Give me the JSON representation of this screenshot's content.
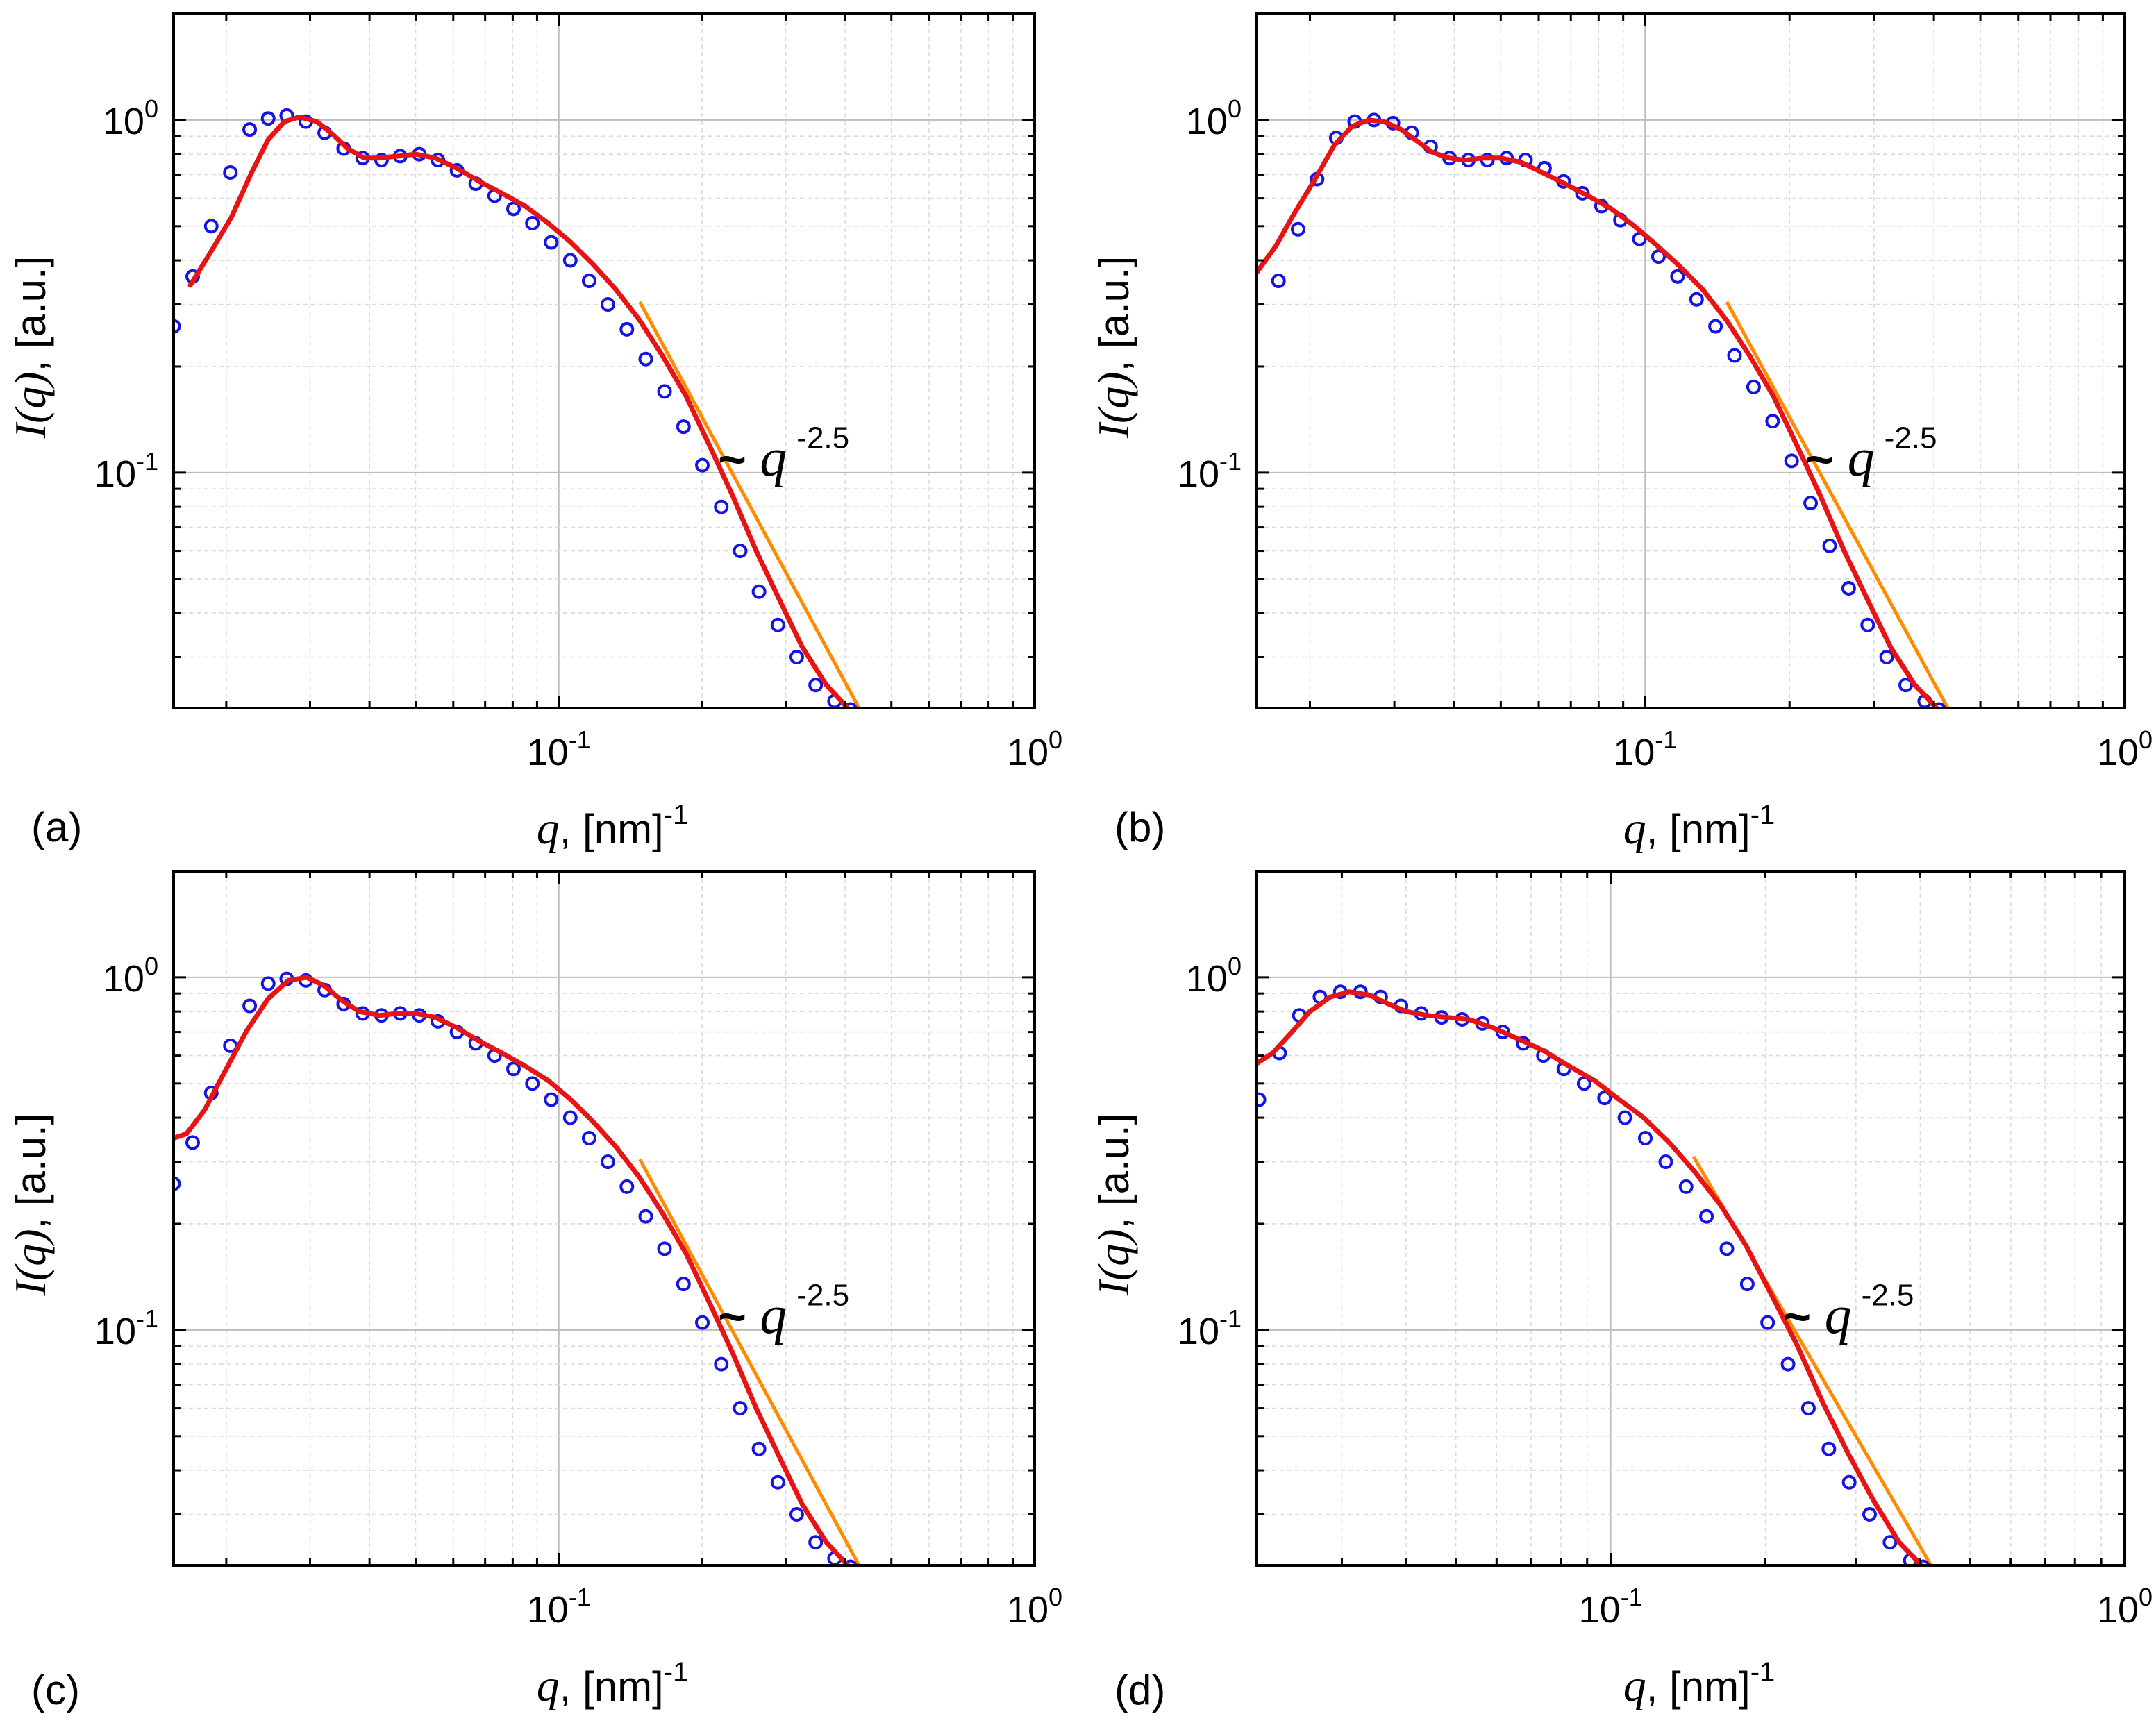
{
  "figure": {
    "caption_letters": [
      "(a)",
      "(b)",
      "(c)",
      "(d)"
    ]
  },
  "colors": {
    "data_marker": "#1414e6",
    "fit_line": "#e61414",
    "powerlaw_line": "#ff8c00",
    "axis": "#000000",
    "grid_major": "#bdbdbd",
    "grid_minor": "#dcdcdc"
  },
  "chart_data": [
    {
      "panel": "(a)",
      "type": "scatter",
      "xscale": "log",
      "yscale": "log",
      "xlim": [
        0.0155,
        1.0
      ],
      "ylim": [
        0.0215,
        2.0
      ],
      "xticks": [
        {
          "value": 0.1,
          "base": "10",
          "exp": "-1"
        },
        {
          "value": 1.0,
          "base": "10",
          "exp": "0"
        }
      ],
      "yticks": [
        {
          "value": 0.1,
          "base": "10",
          "exp": "-1"
        },
        {
          "value": 1.0,
          "base": "10",
          "exp": "0"
        }
      ],
      "xlabel": {
        "var": "q",
        "rest": ", [nm]",
        "sup": "-1"
      },
      "ylabel": {
        "var": "I(q)",
        "rest": ", [a.u.]"
      },
      "annotation": {
        "prefix": "~",
        "var": "q",
        "sup": "-2.5"
      },
      "powerlaw": {
        "exponent": -2.5,
        "x": [
          0.148,
          0.43
        ],
        "y": [
          0.305,
          0.0212
        ]
      },
      "series": [
        {
          "name": "data",
          "style": "markers",
          "color": "#1414e6",
          "q": [
            0.0155,
            0.017,
            0.0186,
            0.0204,
            0.0224,
            0.0245,
            0.0268,
            0.0294,
            0.0322,
            0.0353,
            0.0387,
            0.0424,
            0.0464,
            0.0509,
            0.0557,
            0.0611,
            0.0669,
            0.0733,
            0.0803,
            0.088,
            0.0964,
            0.1057,
            0.1158,
            0.1268,
            0.139,
            0.1523,
            0.1668,
            0.1828,
            0.2003,
            0.2195,
            0.2405,
            0.2635,
            0.2887,
            0.3163,
            0.3466,
            0.3798,
            0.41
          ],
          "I": [
            0.26,
            0.36,
            0.5,
            0.71,
            0.94,
            1.01,
            1.03,
            0.99,
            0.92,
            0.83,
            0.78,
            0.77,
            0.79,
            0.8,
            0.77,
            0.72,
            0.66,
            0.61,
            0.56,
            0.51,
            0.45,
            0.4,
            0.35,
            0.3,
            0.255,
            0.21,
            0.17,
            0.135,
            0.105,
            0.08,
            0.06,
            0.046,
            0.037,
            0.03,
            0.025,
            0.0225,
            0.0213
          ]
        },
        {
          "name": "fit",
          "style": "line",
          "color": "#e61414",
          "q": [
            0.0168,
            0.0185,
            0.0205,
            0.0225,
            0.0245,
            0.0265,
            0.0285,
            0.031,
            0.0335,
            0.036,
            0.039,
            0.042,
            0.046,
            0.05,
            0.055,
            0.061,
            0.068,
            0.076,
            0.085,
            0.095,
            0.106,
            0.118,
            0.132,
            0.148,
            0.165,
            0.185,
            0.207,
            0.232,
            0.26,
            0.29,
            0.325,
            0.365,
            0.405
          ],
          "I": [
            0.34,
            0.42,
            0.53,
            0.7,
            0.88,
            0.99,
            1.02,
            0.99,
            0.91,
            0.83,
            0.78,
            0.78,
            0.79,
            0.8,
            0.78,
            0.73,
            0.67,
            0.62,
            0.57,
            0.51,
            0.45,
            0.39,
            0.33,
            0.27,
            0.215,
            0.165,
            0.12,
            0.086,
            0.06,
            0.044,
            0.032,
            0.025,
            0.0215
          ]
        }
      ]
    },
    {
      "panel": "(b)",
      "type": "scatter",
      "xscale": "log",
      "yscale": "log",
      "xlim": [
        0.0155,
        1.0
      ],
      "ylim": [
        0.0215,
        2.0
      ],
      "xticks": [
        {
          "value": 0.1,
          "base": "10",
          "exp": "-1"
        },
        {
          "value": 1.0,
          "base": "10",
          "exp": "0"
        }
      ],
      "yticks": [
        {
          "value": 0.1,
          "base": "10",
          "exp": "-1"
        },
        {
          "value": 1.0,
          "base": "10",
          "exp": "0"
        }
      ],
      "xlabel": {
        "var": "q",
        "rest": ", [nm]",
        "sup": "-1"
      },
      "ylabel": {
        "var": "I(q)",
        "rest": ", [a.u.]"
      },
      "annotation": {
        "prefix": "~",
        "var": "q",
        "sup": "-2.5"
      },
      "powerlaw": {
        "exponent": -2.5,
        "x": [
          0.148,
          0.43
        ],
        "y": [
          0.305,
          0.0212
        ]
      },
      "series": [
        {
          "name": "data",
          "style": "markers",
          "color": "#1414e6",
          "q": [
            0.0172,
            0.0189,
            0.0207,
            0.0227,
            0.0248,
            0.0272,
            0.0298,
            0.0326,
            0.0357,
            0.0391,
            0.0428,
            0.0469,
            0.0514,
            0.0563,
            0.0617,
            0.0676,
            0.074,
            0.0811,
            0.0888,
            0.0973,
            0.1066,
            0.1168,
            0.128,
            0.1402,
            0.1536,
            0.1683,
            0.1844,
            0.202,
            0.2213,
            0.2425,
            0.2657,
            0.2911,
            0.3189,
            0.3494,
            0.3828,
            0.41
          ],
          "I": [
            0.35,
            0.49,
            0.68,
            0.89,
            0.99,
            1.0,
            0.98,
            0.92,
            0.84,
            0.78,
            0.77,
            0.77,
            0.78,
            0.77,
            0.73,
            0.67,
            0.62,
            0.57,
            0.52,
            0.46,
            0.41,
            0.36,
            0.31,
            0.26,
            0.215,
            0.175,
            0.14,
            0.108,
            0.082,
            0.062,
            0.047,
            0.037,
            0.03,
            0.025,
            0.0225,
            0.0213
          ]
        },
        {
          "name": "fit",
          "style": "line",
          "color": "#e61414",
          "q": [
            0.0155,
            0.017,
            0.0185,
            0.0205,
            0.0225,
            0.0245,
            0.0265,
            0.0285,
            0.031,
            0.0335,
            0.036,
            0.039,
            0.042,
            0.046,
            0.05,
            0.055,
            0.061,
            0.068,
            0.076,
            0.085,
            0.095,
            0.106,
            0.118,
            0.132,
            0.148,
            0.165,
            0.185,
            0.207,
            0.232,
            0.26,
            0.29,
            0.325,
            0.365,
            0.405
          ],
          "I": [
            0.37,
            0.44,
            0.54,
            0.68,
            0.85,
            0.96,
            1.0,
            0.99,
            0.94,
            0.87,
            0.81,
            0.78,
            0.77,
            0.78,
            0.78,
            0.76,
            0.71,
            0.66,
            0.61,
            0.56,
            0.5,
            0.44,
            0.385,
            0.33,
            0.27,
            0.215,
            0.165,
            0.12,
            0.086,
            0.06,
            0.044,
            0.032,
            0.025,
            0.0215
          ]
        }
      ]
    },
    {
      "panel": "(c)",
      "type": "scatter",
      "xscale": "log",
      "yscale": "log",
      "xlim": [
        0.0155,
        1.0
      ],
      "ylim": [
        0.0215,
        2.0
      ],
      "xticks": [
        {
          "value": 0.1,
          "base": "10",
          "exp": "-1"
        },
        {
          "value": 1.0,
          "base": "10",
          "exp": "0"
        }
      ],
      "yticks": [
        {
          "value": 0.1,
          "base": "10",
          "exp": "-1"
        },
        {
          "value": 1.0,
          "base": "10",
          "exp": "0"
        }
      ],
      "xlabel": {
        "var": "q",
        "rest": ", [nm]",
        "sup": "-1"
      },
      "ylabel": {
        "var": "I(q)",
        "rest": ", [a.u.]"
      },
      "annotation": {
        "prefix": "~",
        "var": "q",
        "sup": "-2.5"
      },
      "powerlaw": {
        "exponent": -2.5,
        "x": [
          0.148,
          0.43
        ],
        "y": [
          0.305,
          0.0212
        ]
      },
      "series": [
        {
          "name": "data",
          "style": "markers",
          "color": "#1414e6",
          "q": [
            0.0155,
            0.017,
            0.0186,
            0.0204,
            0.0224,
            0.0245,
            0.0268,
            0.0294,
            0.0322,
            0.0353,
            0.0387,
            0.0424,
            0.0464,
            0.0509,
            0.0557,
            0.0611,
            0.0669,
            0.0733,
            0.0803,
            0.088,
            0.0964,
            0.1057,
            0.1158,
            0.1268,
            0.139,
            0.1523,
            0.1668,
            0.1828,
            0.2003,
            0.2195,
            0.2405,
            0.2635,
            0.2887,
            0.3163,
            0.3466,
            0.3798,
            0.41
          ],
          "I": [
            0.26,
            0.34,
            0.47,
            0.64,
            0.83,
            0.96,
            0.99,
            0.98,
            0.92,
            0.84,
            0.79,
            0.78,
            0.79,
            0.78,
            0.75,
            0.7,
            0.65,
            0.6,
            0.55,
            0.5,
            0.45,
            0.4,
            0.35,
            0.3,
            0.255,
            0.21,
            0.17,
            0.135,
            0.105,
            0.08,
            0.06,
            0.046,
            0.037,
            0.03,
            0.025,
            0.0225,
            0.0213
          ]
        },
        {
          "name": "fit",
          "style": "line",
          "color": "#e61414",
          "q": [
            0.0155,
            0.0165,
            0.018,
            0.02,
            0.022,
            0.0245,
            0.027,
            0.0295,
            0.032,
            0.035,
            0.038,
            0.042,
            0.046,
            0.05,
            0.055,
            0.061,
            0.068,
            0.076,
            0.085,
            0.095,
            0.106,
            0.118,
            0.132,
            0.148,
            0.165,
            0.185,
            0.207,
            0.232,
            0.26,
            0.29,
            0.325,
            0.365,
            0.405
          ],
          "I": [
            0.35,
            0.36,
            0.42,
            0.55,
            0.7,
            0.87,
            0.98,
            1.0,
            0.95,
            0.86,
            0.8,
            0.78,
            0.79,
            0.79,
            0.77,
            0.72,
            0.66,
            0.61,
            0.56,
            0.51,
            0.45,
            0.39,
            0.33,
            0.27,
            0.215,
            0.165,
            0.12,
            0.086,
            0.06,
            0.044,
            0.032,
            0.025,
            0.0215
          ]
        }
      ]
    },
    {
      "panel": "(d)",
      "type": "scatter",
      "xscale": "log",
      "yscale": "log",
      "xlim": [
        0.0205,
        1.0
      ],
      "ylim": [
        0.0215,
        2.0
      ],
      "xticks": [
        {
          "value": 0.1,
          "base": "10",
          "exp": "-1"
        },
        {
          "value": 1.0,
          "base": "10",
          "exp": "0"
        }
      ],
      "yticks": [
        {
          "value": 0.1,
          "base": "10",
          "exp": "-1"
        },
        {
          "value": 1.0,
          "base": "10",
          "exp": "0"
        }
      ],
      "xlabel": {
        "var": "q",
        "rest": ", [nm]",
        "sup": "-1"
      },
      "ylabel": {
        "var": "I(q)",
        "rest": ", [a.u.]"
      },
      "annotation": {
        "prefix": "~",
        "var": "q",
        "sup": "-2.5"
      },
      "powerlaw": {
        "exponent": -2.5,
        "x": [
          0.145,
          0.42
        ],
        "y": [
          0.31,
          0.0215
        ]
      },
      "series": [
        {
          "name": "data",
          "style": "markers",
          "color": "#1414e6",
          "q": [
            0.0207,
            0.0227,
            0.0248,
            0.0272,
            0.0298,
            0.0326,
            0.0357,
            0.0391,
            0.0428,
            0.0469,
            0.0514,
            0.0563,
            0.0617,
            0.0676,
            0.074,
            0.0811,
            0.0888,
            0.0973,
            0.1066,
            0.1168,
            0.128,
            0.1402,
            0.1536,
            0.1683,
            0.1844,
            0.202,
            0.2213,
            0.2425,
            0.2657,
            0.2911,
            0.3189,
            0.3494,
            0.3828,
            0.405
          ],
          "I": [
            0.45,
            0.61,
            0.78,
            0.88,
            0.91,
            0.91,
            0.88,
            0.83,
            0.79,
            0.77,
            0.76,
            0.74,
            0.7,
            0.65,
            0.6,
            0.55,
            0.5,
            0.455,
            0.4,
            0.35,
            0.3,
            0.255,
            0.21,
            0.17,
            0.135,
            0.105,
            0.08,
            0.06,
            0.046,
            0.037,
            0.03,
            0.025,
            0.0222,
            0.0213
          ]
        },
        {
          "name": "fit",
          "style": "line",
          "color": "#e61414",
          "q": [
            0.0205,
            0.022,
            0.024,
            0.026,
            0.0285,
            0.031,
            0.034,
            0.037,
            0.04,
            0.044,
            0.048,
            0.053,
            0.059,
            0.066,
            0.074,
            0.083,
            0.093,
            0.104,
            0.116,
            0.13,
            0.146,
            0.164,
            0.184,
            0.206,
            0.231,
            0.259,
            0.289,
            0.324,
            0.364,
            0.4
          ],
          "I": [
            0.57,
            0.61,
            0.7,
            0.8,
            0.88,
            0.91,
            0.89,
            0.84,
            0.8,
            0.78,
            0.77,
            0.76,
            0.72,
            0.67,
            0.62,
            0.56,
            0.51,
            0.45,
            0.4,
            0.34,
            0.28,
            0.225,
            0.172,
            0.125,
            0.09,
            0.062,
            0.045,
            0.033,
            0.025,
            0.0217
          ]
        }
      ]
    }
  ]
}
